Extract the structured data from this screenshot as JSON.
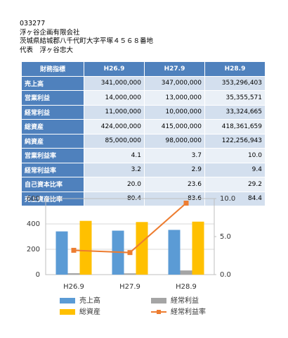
{
  "header": {
    "code": "033277",
    "company": "浮ヶ谷企画有限会社",
    "address": "茨城県結城郡八千代町大字平塚４５６８番地",
    "representative": "代表　浮ヶ谷忠大"
  },
  "table": {
    "columns": [
      "財務指標",
      "H26.9",
      "H27.9",
      "H28.9"
    ],
    "rows": [
      [
        "売上高",
        "341,000,000",
        "347,000,000",
        "353,296,403"
      ],
      [
        "営業利益",
        "14,000,000",
        "13,000,000",
        "35,355,571"
      ],
      [
        "経常利益",
        "11,000,000",
        "10,000,000",
        "33,324,665"
      ],
      [
        "総資産",
        "424,000,000",
        "415,000,000",
        "418,361,659"
      ],
      [
        "純資産",
        "85,000,000",
        "98,000,000",
        "122,256,943"
      ],
      [
        "営業利益率",
        "4.1",
        "3.7",
        "10.0"
      ],
      [
        "経常利益率",
        "3.2",
        "2.9",
        "9.4"
      ],
      [
        "自己資本比率",
        "20.0",
        "23.6",
        "29.2"
      ],
      [
        "売上資産比率",
        "80.4",
        "83.6",
        "84.4"
      ]
    ]
  },
  "chart_data": {
    "type": "bar",
    "categories": [
      "H26.9",
      "H27.9",
      "H28.9"
    ],
    "series": [
      {
        "name": "売上高",
        "color": "#5b9bd5",
        "values": [
          341,
          347,
          353
        ]
      },
      {
        "name": "経常利益",
        "color": "#a5a5a5",
        "values": [
          11,
          10,
          33
        ]
      },
      {
        "name": "総資産",
        "color": "#ffc000",
        "values": [
          424,
          415,
          418
        ]
      },
      {
        "name": "経常利益率",
        "color": "#ed7d31",
        "values": [
          3.2,
          2.9,
          9.4
        ],
        "type": "line",
        "axis": "y2"
      }
    ],
    "ylim": [
      0,
      600
    ],
    "yticks": [
      0,
      200,
      400,
      600
    ],
    "y2lim": [
      0,
      10
    ],
    "y2ticks": [
      {
        "value": 0,
        "label": "0.0"
      },
      {
        "value": 5,
        "label": "5.0"
      },
      {
        "value": 10,
        "label": "10.0"
      }
    ],
    "grid": true
  }
}
